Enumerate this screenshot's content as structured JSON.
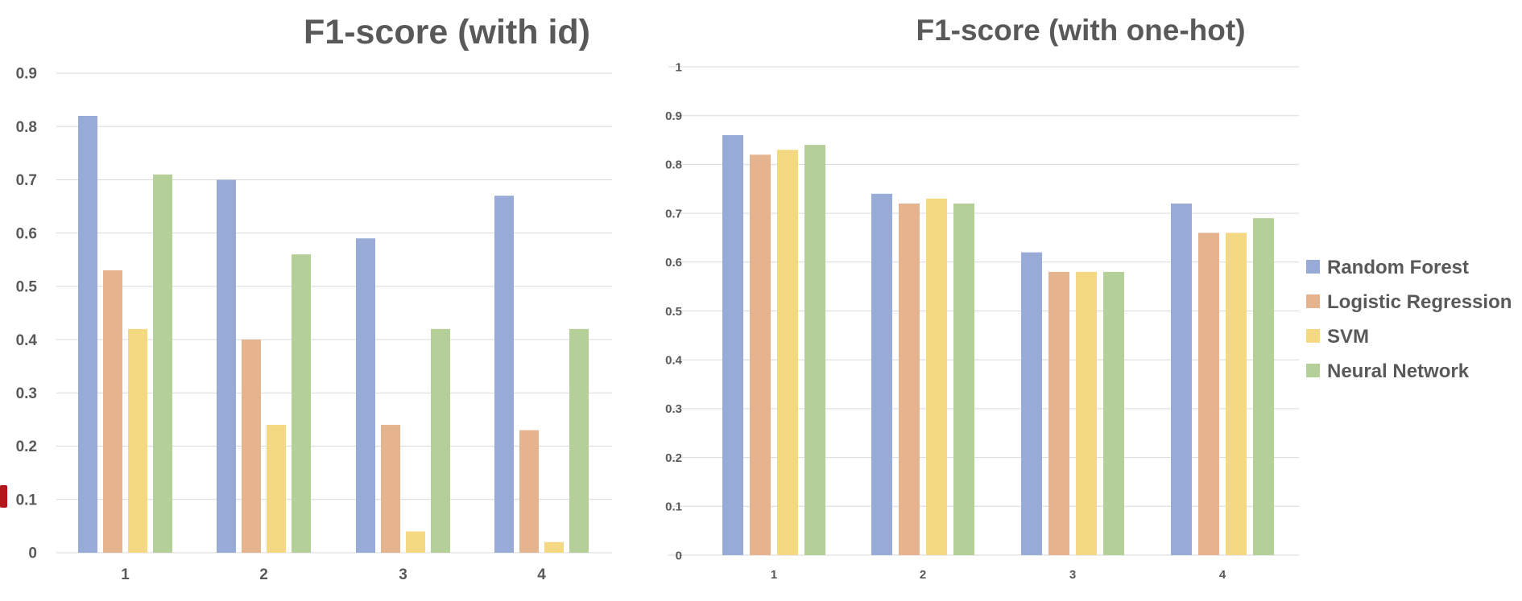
{
  "colors": {
    "Random Forest": "#98abd6",
    "Logistic Regression": "#e5b38e",
    "SVM": "#f4d982",
    "Neural Network": "#b5cf98",
    "grid": "#d9d9d9",
    "text": "#595959"
  },
  "legend": {
    "items": [
      "Random Forest",
      "Logistic Regression",
      "SVM",
      "Neural Network"
    ]
  },
  "chart_data": [
    {
      "type": "bar",
      "title": "F1-score (with id)",
      "xlabel": "",
      "ylabel": "",
      "categories": [
        "1",
        "2",
        "3",
        "4"
      ],
      "ylim": [
        0,
        0.9
      ],
      "yticks": [
        "0",
        "0.1",
        "0.2",
        "0.3",
        "0.4",
        "0.5",
        "0.6",
        "0.7",
        "0.8",
        "0.9"
      ],
      "grid": true,
      "series": [
        {
          "name": "Random Forest",
          "values": [
            0.82,
            0.7,
            0.59,
            0.67
          ]
        },
        {
          "name": "Logistic Regression",
          "values": [
            0.53,
            0.4,
            0.24,
            0.23
          ]
        },
        {
          "name": "SVM",
          "values": [
            0.42,
            0.24,
            0.04,
            0.02
          ]
        },
        {
          "name": "Neural Network",
          "values": [
            0.71,
            0.56,
            0.42,
            0.42
          ]
        }
      ]
    },
    {
      "type": "bar",
      "title": "F1-score (with one-hot)",
      "xlabel": "",
      "ylabel": "",
      "categories": [
        "1",
        "2",
        "3",
        "4"
      ],
      "ylim": [
        0,
        1
      ],
      "yticks": [
        "0",
        "0.1",
        "0.2",
        "0.3",
        "0.4",
        "0.5",
        "0.6",
        "0.7",
        "0.8",
        "0.9",
        "1"
      ],
      "grid": true,
      "legend_position": "right",
      "series": [
        {
          "name": "Random Forest",
          "values": [
            0.86,
            0.74,
            0.62,
            0.72
          ]
        },
        {
          "name": "Logistic Regression",
          "values": [
            0.82,
            0.72,
            0.58,
            0.66
          ]
        },
        {
          "name": "SVM",
          "values": [
            0.83,
            0.73,
            0.58,
            0.66
          ]
        },
        {
          "name": "Neural Network",
          "values": [
            0.84,
            0.72,
            0.58,
            0.69
          ]
        }
      ]
    }
  ]
}
